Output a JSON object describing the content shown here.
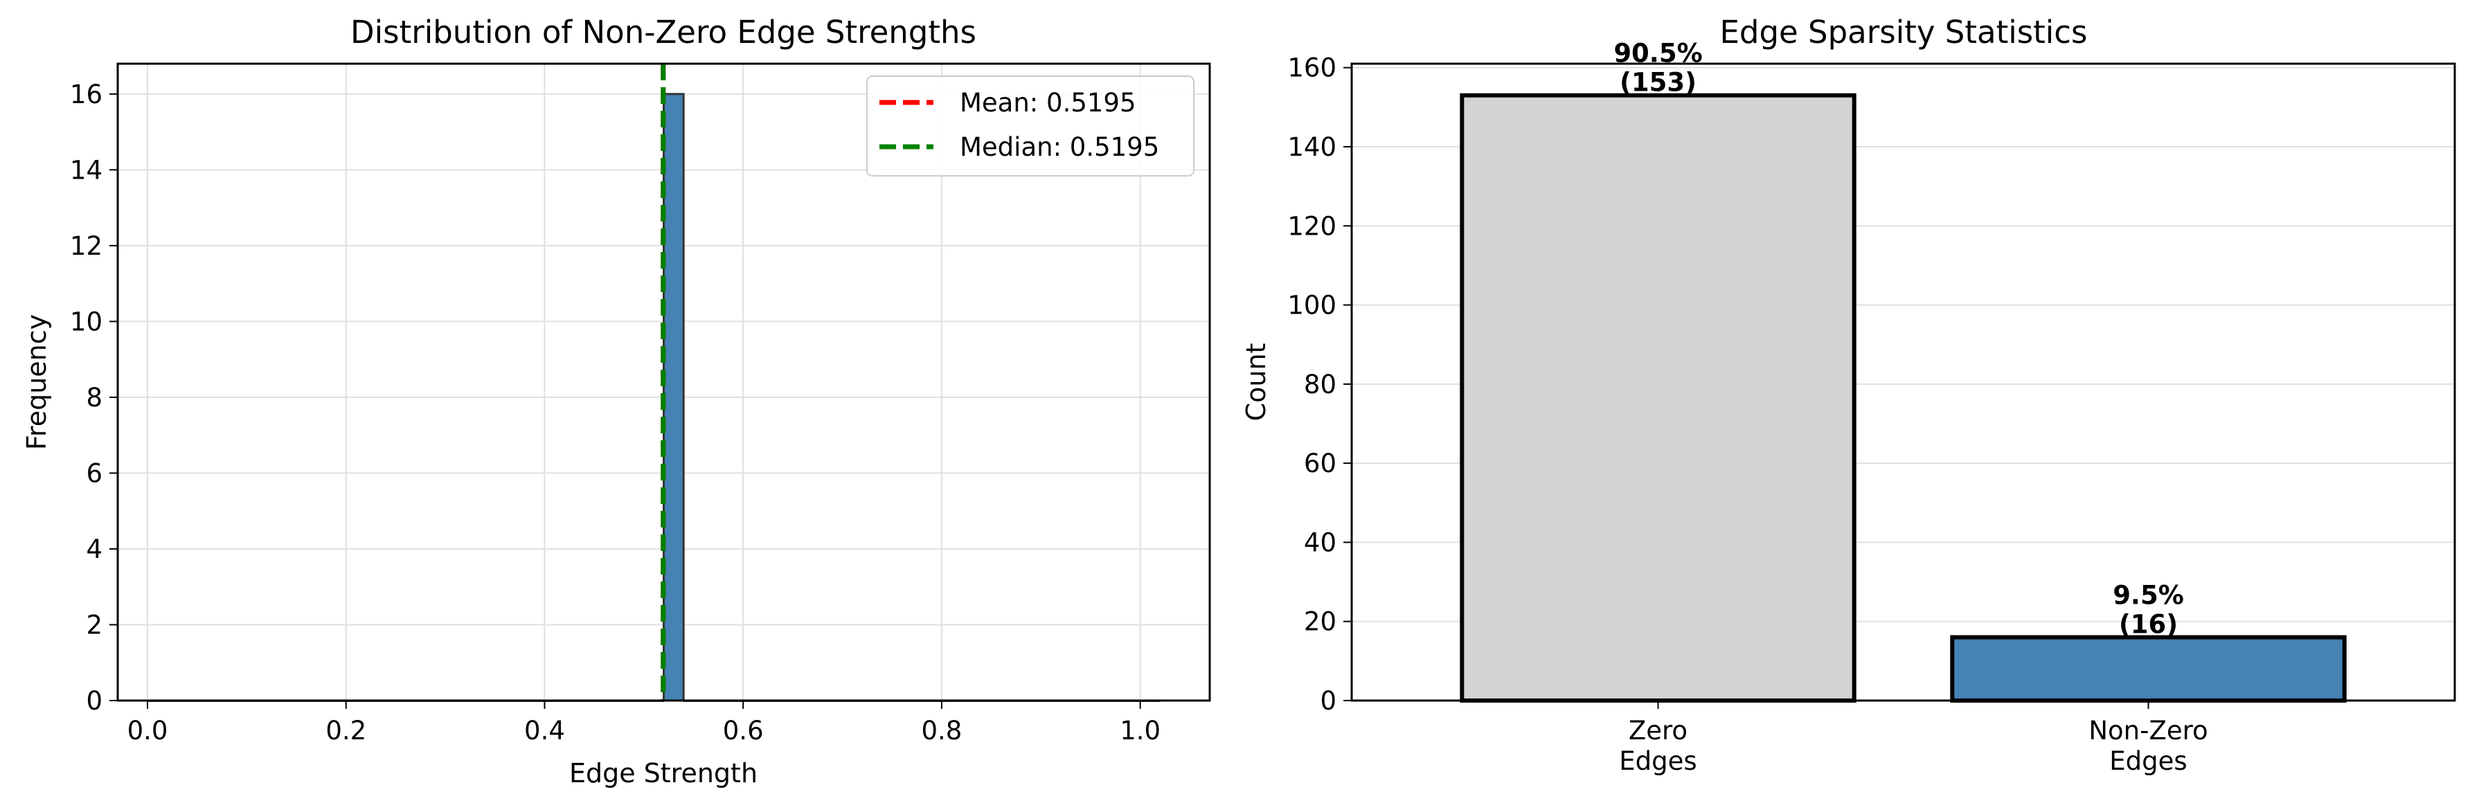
{
  "chart_data": [
    {
      "type": "histogram",
      "title": "Distribution of Non-Zero Edge Strengths",
      "xlabel": "Edge Strength",
      "ylabel": "Frequency",
      "xlim": [
        -0.03,
        1.07
      ],
      "ylim": [
        0,
        16.8
      ],
      "xticks": [
        "0.0",
        "0.2",
        "0.4",
        "0.6",
        "0.8",
        "1.0"
      ],
      "xtick_values": [
        0.0,
        0.2,
        0.4,
        0.6,
        0.8,
        1.0
      ],
      "yticks": [
        "0",
        "2",
        "4",
        "6",
        "8",
        "10",
        "12",
        "14",
        "16"
      ],
      "ytick_values": [
        0,
        2,
        4,
        6,
        8,
        10,
        12,
        14,
        16
      ],
      "grid": true,
      "bin_edges": [
        0.0,
        0.02,
        0.04,
        0.06,
        0.08,
        0.1,
        0.12,
        0.14,
        0.16,
        0.18,
        0.2,
        0.22,
        0.24,
        0.26,
        0.28,
        0.3,
        0.32,
        0.34,
        0.36,
        0.38,
        0.4,
        0.42,
        0.44,
        0.46,
        0.48,
        0.5,
        0.52,
        0.54,
        0.56,
        0.58,
        0.6,
        0.62,
        0.64,
        0.66,
        0.68,
        0.7,
        0.72,
        0.74,
        0.76,
        0.78,
        0.8,
        0.82,
        0.84,
        0.86,
        0.88,
        0.9,
        0.92,
        0.94,
        0.96,
        0.98,
        1.0,
        1.02
      ],
      "counts": [
        0,
        0,
        0,
        0,
        0,
        0,
        0,
        0,
        0,
        0,
        0,
        0,
        0,
        0,
        0,
        0,
        0,
        0,
        0,
        0,
        0,
        0,
        0,
        0,
        0,
        0,
        16,
        0,
        0,
        0,
        0,
        0,
        0,
        0,
        0,
        0,
        0,
        0,
        0,
        0,
        0,
        0,
        0,
        0,
        0,
        0,
        0,
        0,
        0,
        0,
        0
      ],
      "bar_color": "#4682b4",
      "vlines": [
        {
          "label": "Mean: 0.5195",
          "x": 0.5195,
          "color": "#ff0000",
          "style": "dashed"
        },
        {
          "label": "Median: 0.5195",
          "x": 0.5195,
          "color": "#008000",
          "style": "dashed"
        }
      ],
      "legend_position": "top-right"
    },
    {
      "type": "bar",
      "title": "Edge Sparsity Statistics",
      "xlabel": "",
      "ylabel": "Count",
      "categories": [
        [
          "Zero",
          "Edges"
        ],
        [
          "Non-Zero",
          "Edges"
        ]
      ],
      "values": [
        153,
        16
      ],
      "percent_labels": [
        "90.5%",
        "9.5%"
      ],
      "count_labels": [
        "(153)",
        "(16)"
      ],
      "colors": [
        "#d3d3d3",
        "#4682b4"
      ],
      "ylim": [
        0,
        161
      ],
      "yticks": [
        "0",
        "20",
        "40",
        "60",
        "80",
        "100",
        "120",
        "140",
        "160"
      ],
      "ytick_values": [
        0,
        20,
        40,
        60,
        80,
        100,
        120,
        140,
        160
      ],
      "grid": true
    }
  ]
}
